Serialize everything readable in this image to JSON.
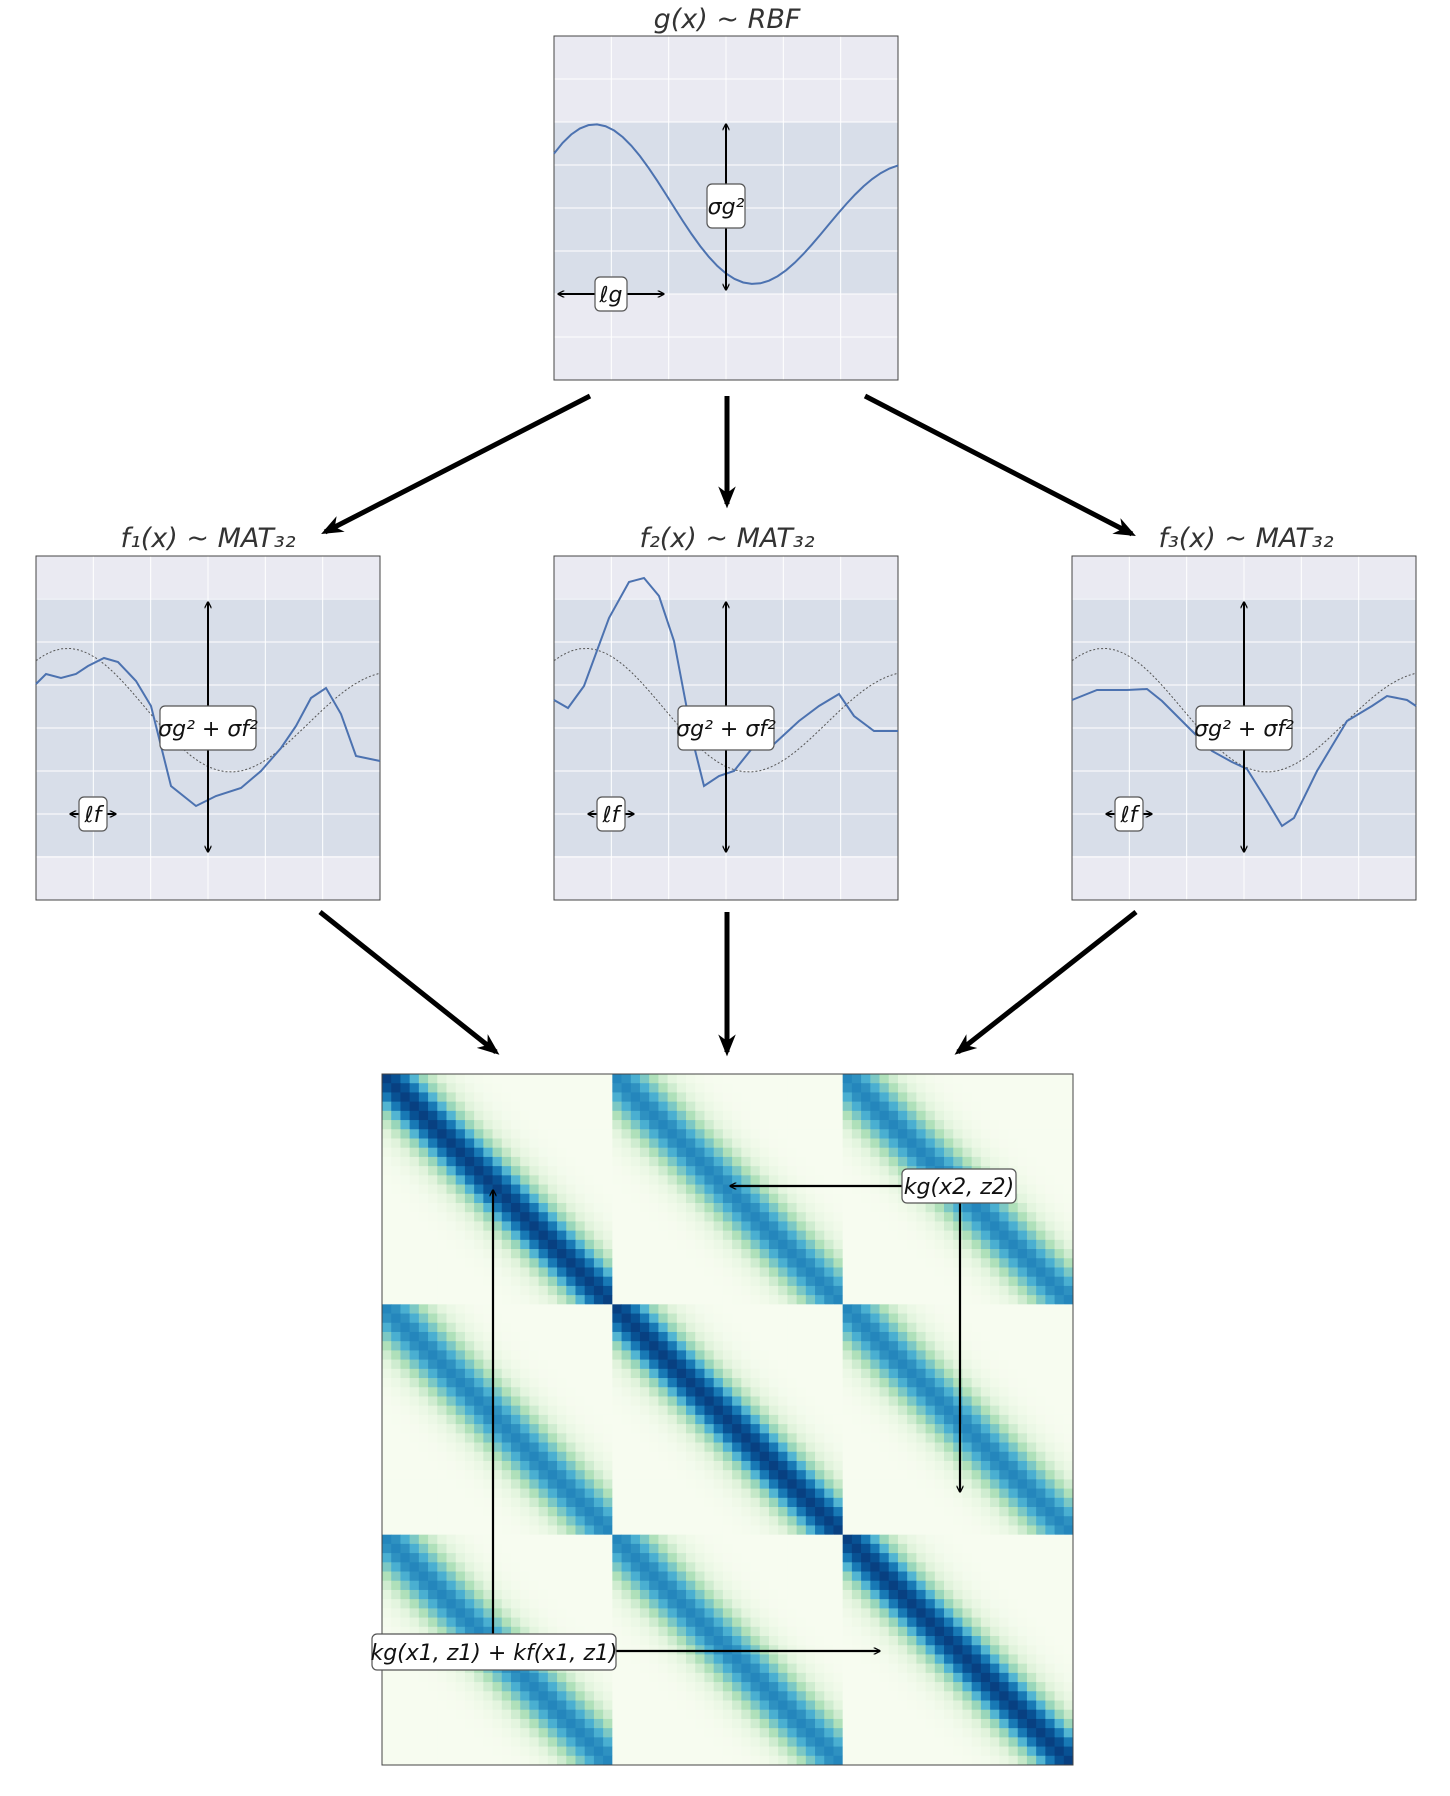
{
  "top_panel": {
    "title": "g(x) ~ RBF",
    "variance_label": "σ²_g",
    "lengthscale_label": "ℓ_g"
  },
  "middle_panels": [
    {
      "title": "f₁(x) ~ MAT₃₂",
      "variance_label": "σ²_g + σ²_f",
      "lengthscale_label": "ℓ_f"
    },
    {
      "title": "f₂(x) ~ MAT₃₂",
      "variance_label": "σ²_g + σ²_f",
      "lengthscale_label": "ℓ_f"
    },
    {
      "title": "f₃(x) ~ MAT₃₂",
      "variance_label": "σ²_g + σ²_f",
      "lengthscale_label": "ℓ_f"
    }
  ],
  "covariance_matrix": {
    "blocks": 3,
    "off_diagonal_label": "kg(x2, z2)",
    "diagonal_label": "kg(x1, z1) + kf(x1, z1)",
    "colormap": [
      "#f7fcf0",
      "#e0f3db",
      "#a8ddb5",
      "#4eb3d3",
      "#0868ac",
      "#084081"
    ]
  },
  "colors": {
    "line": "#4c72b0",
    "panel_bg": "#eaeaf2",
    "band": "#d8dee9",
    "grid": "#ffffff",
    "arrow": "#000000"
  }
}
